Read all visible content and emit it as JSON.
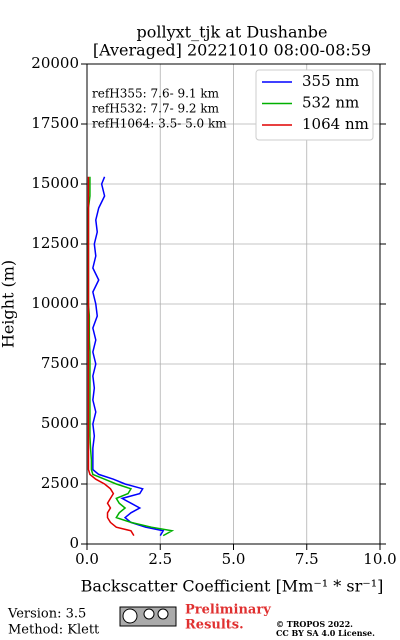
{
  "chart_data": {
    "type": "line",
    "title": [
      "pollyxt_tjk at Dushanbe",
      "[Averaged] 20221010 08:00-08:59"
    ],
    "xlabel": "Backscatter Coefficient [Mm⁻¹ * sr⁻¹]",
    "ylabel": "Height (m)",
    "y": [
      350,
      550,
      700,
      900,
      1100,
      1300,
      1500,
      1700,
      1900,
      2100,
      2300,
      2500,
      2700,
      2900,
      3100,
      3500,
      4000,
      4500,
      5000,
      5500,
      6000,
      6500,
      7000,
      7500,
      8000,
      8500,
      9000,
      9500,
      10000,
      10500,
      11000,
      11500,
      12000,
      12500,
      13000,
      13500,
      14000,
      14500,
      15000,
      15300
    ],
    "series": [
      {
        "name": "355 nm",
        "color": "#0000ff",
        "values": [
          2.5,
          2.6,
          2.0,
          1.5,
          1.3,
          1.5,
          1.8,
          1.5,
          1.2,
          1.8,
          1.9,
          1.3,
          0.9,
          0.4,
          0.2,
          0.2,
          0.2,
          0.25,
          0.2,
          0.3,
          0.2,
          0.25,
          0.2,
          0.3,
          0.2,
          0.3,
          0.2,
          0.35,
          0.3,
          0.2,
          0.4,
          0.2,
          0.3,
          0.25,
          0.35,
          0.3,
          0.4,
          0.6,
          0.5,
          0.6
        ]
      },
      {
        "name": "532 nm",
        "color": "#00b000",
        "values": [
          2.6,
          2.9,
          2.2,
          1.5,
          1.0,
          1.1,
          1.3,
          1.1,
          1.0,
          1.4,
          1.5,
          1.0,
          0.6,
          0.2,
          0.15,
          0.15,
          0.12,
          0.1,
          0.1,
          0.1,
          0.1,
          0.1,
          0.1,
          0.1,
          0.1,
          0.08,
          0.08,
          0.08,
          0.05,
          0.05,
          0.05,
          0.05,
          0.05,
          0.05,
          0.05,
          0.05,
          0.05,
          0.1,
          0.1,
          0.1
        ]
      },
      {
        "name": "1064 nm",
        "color": "#e00000",
        "values": [
          1.6,
          1.5,
          1.0,
          0.8,
          0.7,
          0.7,
          0.8,
          0.7,
          0.8,
          0.9,
          0.8,
          0.6,
          0.3,
          0.1,
          0.05,
          0.05,
          0.05,
          0.05,
          0.05,
          0.05,
          0.05,
          0.05,
          0.05,
          0.05,
          0.05,
          0.05,
          0.05,
          0.05,
          0.05,
          0.05,
          0.05,
          0.05,
          0.05,
          0.05,
          0.05,
          0.05,
          0.05,
          0.05,
          0.05,
          0.05
        ]
      }
    ],
    "xlim": [
      0,
      10
    ],
    "xticks": [
      {
        "value": 0,
        "label": "0.0"
      },
      2.5,
      {
        "value": 5,
        "label": "5.0"
      },
      7.5,
      {
        "value": 10,
        "label": "10.0"
      }
    ],
    "ylim": [
      0,
      20000
    ],
    "yticks": [
      0,
      2500,
      5000,
      7500,
      10000,
      12500,
      15000,
      17500,
      20000
    ],
    "grid": true,
    "legend": "upper right",
    "annotations": [
      "refH355:  7.6- 9.1 km",
      "refH532:  7.7- 9.2 km",
      "refH1064:  3.5- 5.0 km"
    ]
  },
  "footer": {
    "version": "Version: 3.5",
    "method": "Method: Klett",
    "preliminary": [
      "Preliminary",
      "Results."
    ],
    "copyright": [
      "© TROPOS 2022.",
      "CC BY SA 4.0 License."
    ]
  }
}
